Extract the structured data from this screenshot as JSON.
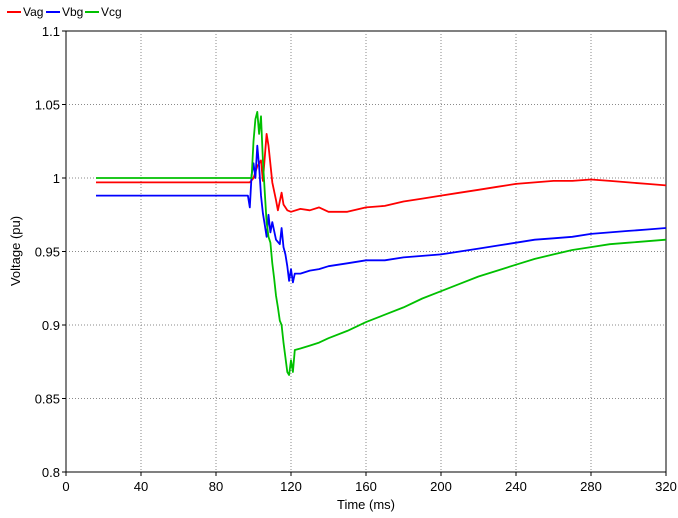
{
  "chart_data": {
    "type": "line",
    "title": "",
    "xlabel": "Time (ms)",
    "ylabel": "Voltage (pu)",
    "xlim": [
      0,
      320
    ],
    "ylim": [
      0.8,
      1.1
    ],
    "x_ticks": [
      "0",
      "40",
      "80",
      "120",
      "160",
      "200",
      "240",
      "280",
      "320"
    ],
    "y_ticks": [
      "0.8",
      "0.85",
      "0.9",
      "0.95",
      "1",
      "1.05",
      "1.1"
    ],
    "grid": true,
    "legend_position": "top-left",
    "series": [
      {
        "name": "Vag",
        "color": "#ff0000",
        "points": [
          [
            16,
            0.997
          ],
          [
            98,
            0.997
          ],
          [
            100,
            1.0
          ],
          [
            102,
            1.008
          ],
          [
            104,
            1.012
          ],
          [
            105,
            0.998
          ],
          [
            107,
            1.03
          ],
          [
            108,
            1.022
          ],
          [
            110,
            0.997
          ],
          [
            112,
            0.985
          ],
          [
            113,
            0.978
          ],
          [
            115,
            0.99
          ],
          [
            116,
            0.982
          ],
          [
            118,
            0.978
          ],
          [
            120,
            0.977
          ],
          [
            125,
            0.979
          ],
          [
            130,
            0.978
          ],
          [
            135,
            0.98
          ],
          [
            140,
            0.977
          ],
          [
            150,
            0.977
          ],
          [
            160,
            0.98
          ],
          [
            170,
            0.981
          ],
          [
            180,
            0.984
          ],
          [
            190,
            0.986
          ],
          [
            200,
            0.988
          ],
          [
            210,
            0.99
          ],
          [
            220,
            0.992
          ],
          [
            230,
            0.994
          ],
          [
            240,
            0.996
          ],
          [
            250,
            0.997
          ],
          [
            260,
            0.998
          ],
          [
            270,
            0.998
          ],
          [
            280,
            0.999
          ],
          [
            290,
            0.998
          ],
          [
            300,
            0.997
          ],
          [
            310,
            0.996
          ],
          [
            320,
            0.995
          ]
        ]
      },
      {
        "name": "Vbg",
        "color": "#0000ff",
        "points": [
          [
            16,
            0.988
          ],
          [
            97,
            0.988
          ],
          [
            98,
            0.98
          ],
          [
            99,
            1.002
          ],
          [
            100,
            1.01
          ],
          [
            101,
            1.0
          ],
          [
            102,
            1.022
          ],
          [
            103,
            1.008
          ],
          [
            104,
            0.988
          ],
          [
            105,
            0.976
          ],
          [
            106,
            0.968
          ],
          [
            107,
            0.96
          ],
          [
            108,
            0.975
          ],
          [
            109,
            0.963
          ],
          [
            110,
            0.97
          ],
          [
            112,
            0.958
          ],
          [
            114,
            0.955
          ],
          [
            115,
            0.966
          ],
          [
            116,
            0.953
          ],
          [
            117,
            0.948
          ],
          [
            118,
            0.94
          ],
          [
            119,
            0.93
          ],
          [
            120,
            0.938
          ],
          [
            121,
            0.929
          ],
          [
            122,
            0.935
          ],
          [
            125,
            0.935
          ],
          [
            130,
            0.937
          ],
          [
            135,
            0.938
          ],
          [
            140,
            0.94
          ],
          [
            150,
            0.942
          ],
          [
            160,
            0.944
          ],
          [
            170,
            0.944
          ],
          [
            180,
            0.946
          ],
          [
            190,
            0.947
          ],
          [
            200,
            0.948
          ],
          [
            210,
            0.95
          ],
          [
            220,
            0.952
          ],
          [
            230,
            0.954
          ],
          [
            240,
            0.956
          ],
          [
            250,
            0.958
          ],
          [
            260,
            0.959
          ],
          [
            270,
            0.96
          ],
          [
            280,
            0.962
          ],
          [
            290,
            0.963
          ],
          [
            300,
            0.964
          ],
          [
            310,
            0.965
          ],
          [
            320,
            0.966
          ]
        ]
      },
      {
        "name": "Vcg",
        "color": "#00c000",
        "points": [
          [
            16,
            1.0
          ],
          [
            99,
            1.0
          ],
          [
            100,
            1.025
          ],
          [
            101,
            1.04
          ],
          [
            102,
            1.045
          ],
          [
            103,
            1.03
          ],
          [
            104,
            1.042
          ],
          [
            105,
            1.012
          ],
          [
            106,
            0.99
          ],
          [
            107,
            0.97
          ],
          [
            108,
            0.96
          ],
          [
            109,
            0.956
          ],
          [
            110,
            0.942
          ],
          [
            111,
            0.932
          ],
          [
            112,
            0.92
          ],
          [
            113,
            0.912
          ],
          [
            114,
            0.903
          ],
          [
            115,
            0.9
          ],
          [
            116,
            0.888
          ],
          [
            117,
            0.878
          ],
          [
            118,
            0.868
          ],
          [
            119,
            0.866
          ],
          [
            120,
            0.876
          ],
          [
            121,
            0.868
          ],
          [
            122,
            0.883
          ],
          [
            125,
            0.884
          ],
          [
            130,
            0.886
          ],
          [
            135,
            0.888
          ],
          [
            140,
            0.891
          ],
          [
            150,
            0.896
          ],
          [
            160,
            0.902
          ],
          [
            170,
            0.907
          ],
          [
            180,
            0.912
          ],
          [
            190,
            0.918
          ],
          [
            200,
            0.923
          ],
          [
            210,
            0.928
          ],
          [
            220,
            0.933
          ],
          [
            230,
            0.937
          ],
          [
            240,
            0.941
          ],
          [
            250,
            0.945
          ],
          [
            260,
            0.948
          ],
          [
            270,
            0.951
          ],
          [
            280,
            0.953
          ],
          [
            290,
            0.955
          ],
          [
            300,
            0.956
          ],
          [
            310,
            0.957
          ],
          [
            320,
            0.958
          ]
        ]
      }
    ]
  }
}
